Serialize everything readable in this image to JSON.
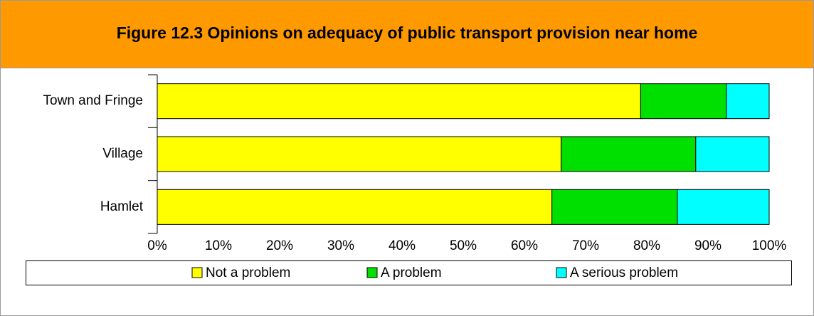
{
  "chart_data": {
    "type": "stacked_barh",
    "title": "Figure 12.3 Opinions on adequacy of public transport provision near home",
    "categories": [
      "Town and Fringe",
      "Village",
      "Hamlet"
    ],
    "series": [
      {
        "name": "Not a problem",
        "color": "#ffff00",
        "values": [
          79,
          66,
          64.5
        ]
      },
      {
        "name": "A problem",
        "color": "#00e000",
        "values": [
          14,
          22,
          20.5
        ]
      },
      {
        "name": "A serious problem",
        "color": "#00ffff",
        "values": [
          7,
          12,
          15
        ]
      }
    ],
    "xlim": [
      0,
      100
    ],
    "xticks": [
      {
        "value": 0,
        "label": "0%"
      },
      {
        "value": 10,
        "label": "10%"
      },
      {
        "value": 20,
        "label": "20%"
      },
      {
        "value": 30,
        "label": "30%"
      },
      {
        "value": 40,
        "label": "40%"
      },
      {
        "value": 50,
        "label": "50%"
      },
      {
        "value": 60,
        "label": "60%"
      },
      {
        "value": 70,
        "label": "70%"
      },
      {
        "value": 80,
        "label": "80%"
      },
      {
        "value": 90,
        "label": "90%"
      },
      {
        "value": 100,
        "label": "100%"
      }
    ],
    "legend": "bottom"
  }
}
